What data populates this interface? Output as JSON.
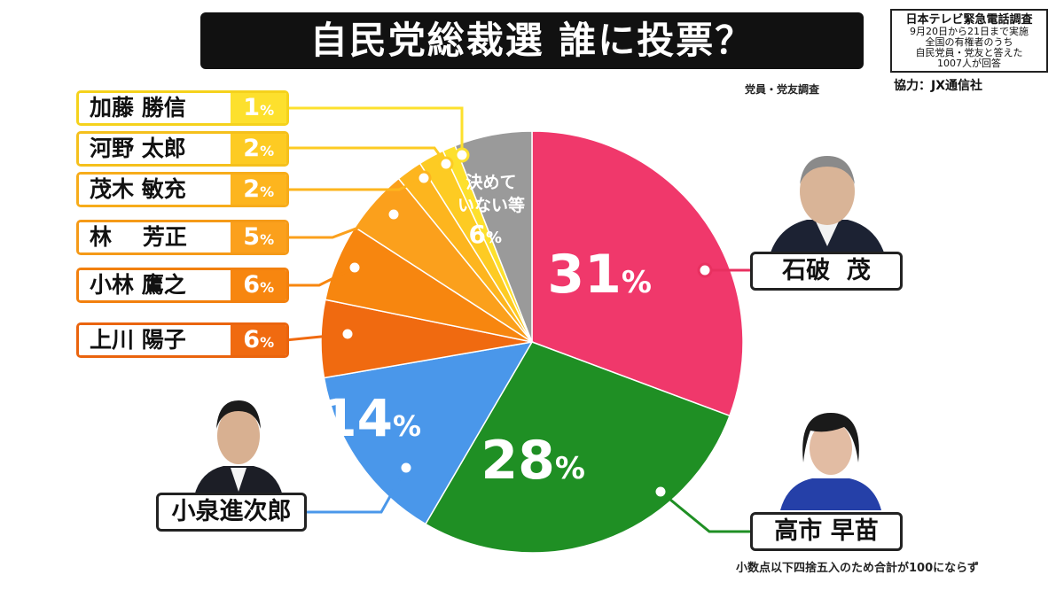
{
  "title": "自民党総裁選 誰に投票？",
  "survey_info": [
    "日本テレビ緊急電話調査",
    "9月20日から21日まで実施",
    "全国の有権者のうち",
    "自民党員・党友と答えた",
    "1007人が回答"
  ],
  "cooperation": "協力：JX通信社",
  "survey_scope": "党員・党友調査",
  "footnote": "小数点以下四捨五入のため合計が100にならず",
  "percent_sign": "%",
  "chart_data": {
    "type": "pie",
    "title": "自民党総裁選 誰に投票？",
    "unit": "%",
    "start": "12 o'clock",
    "direction": "clockwise",
    "slices": [
      {
        "label": "石破 茂",
        "value": 31,
        "color": "#f0386b"
      },
      {
        "label": "高市 早苗",
        "value": 28,
        "color": "#1f8f24"
      },
      {
        "label": "小泉進次郎",
        "value": 14,
        "color": "#4a97ea"
      },
      {
        "label": "上川 陽子",
        "value": 6,
        "color": "#f06a10"
      },
      {
        "label": "小林 鷹之",
        "value": 6,
        "color": "#f7860f"
      },
      {
        "label": "林 芳正",
        "value": 5,
        "color": "#fba01c"
      },
      {
        "label": "茂木 敏充",
        "value": 2,
        "color": "#fdb51e"
      },
      {
        "label": "河野 太郎",
        "value": 2,
        "color": "#fdcb23"
      },
      {
        "label": "加藤 勝信",
        "value": 1,
        "color": "#fde02d"
      },
      {
        "label": "決めていない等",
        "value": 6,
        "color": "#9a9a9a"
      }
    ]
  },
  "labels": {
    "ishiba": "石破  茂",
    "takaichi": "高市 早苗",
    "koizumi": "小泉進次郎",
    "kamikawa": "上川 陽子",
    "kobayashi": "小林 鷹之",
    "hayashi": "林    芳正",
    "motegi": "茂木 敏充",
    "kono": "河野 太郎",
    "kato": "加藤 勝信",
    "undecided_line1": "決めて",
    "undecided_line2": "いない等"
  },
  "colors": {
    "ishiba_line": "#e83060",
    "takaichi_line": "#1f8f24",
    "koizumi_line": "#4a97ea"
  }
}
